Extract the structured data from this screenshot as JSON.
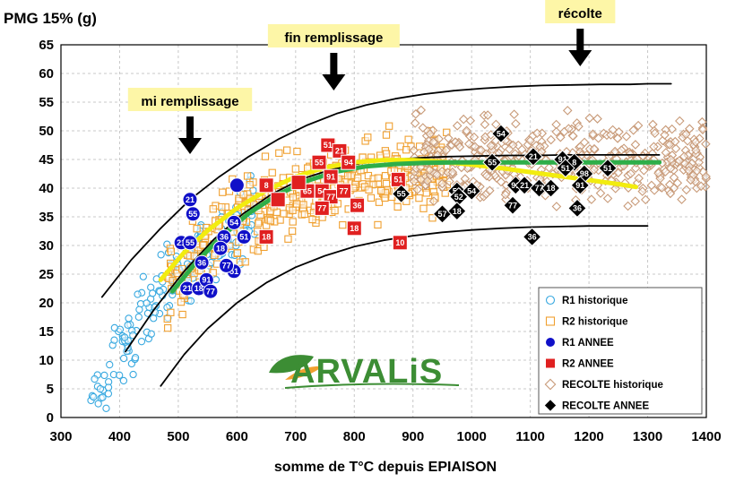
{
  "chart_data": {
    "type": "scatter",
    "title": "PMG 15% (g)",
    "xlabel": "somme de T°C depuis EPIAISON",
    "ylabel": "PMG 15% (g)",
    "xlim": [
      300,
      1400
    ],
    "ylim": [
      0,
      65
    ],
    "x_ticks": [
      "300",
      "400",
      "500",
      "600",
      "700",
      "800",
      "900",
      "1000",
      "1100",
      "1200",
      "1300",
      "1400"
    ],
    "y_ticks": [
      "0",
      "5",
      "10",
      "15",
      "20",
      "25",
      "30",
      "35",
      "40",
      "45",
      "50",
      "55",
      "60",
      "65"
    ],
    "grid": "dashed horizontal and vertical",
    "legend_position": "bottom-right",
    "annotations": [
      {
        "label": "mi remplissage",
        "x": 520
      },
      {
        "label": "fin remplissage",
        "x": 765
      },
      {
        "label": "récolte",
        "x": 1185
      }
    ],
    "series": [
      {
        "name": "R1 historique",
        "marker": "circle-open",
        "color": "#39a9e0",
        "cloud": {
          "x_range": [
            350,
            630
          ],
          "curve": "growth",
          "spread": 4.5,
          "count": 200
        }
      },
      {
        "name": "R2 historique",
        "marker": "square-open",
        "color": "#f0a030",
        "cloud": {
          "x_range": [
            480,
            960
          ],
          "curve": "growth",
          "spread": 5,
          "count": 440
        }
      },
      {
        "name": "R1 ANNEE",
        "marker": "circle-filled",
        "color": "#1010c8",
        "points": [
          {
            "x": 520,
            "y": 38,
            "label": "21"
          },
          {
            "x": 525,
            "y": 35.5,
            "label": "55"
          },
          {
            "x": 505,
            "y": 30.5,
            "label": "21"
          },
          {
            "x": 520,
            "y": 30.5,
            "label": "55"
          },
          {
            "x": 595,
            "y": 34,
            "label": "54"
          },
          {
            "x": 578,
            "y": 31.5,
            "label": "36"
          },
          {
            "x": 612,
            "y": 31.5,
            "label": "51"
          },
          {
            "x": 572,
            "y": 29.5,
            "label": "18"
          },
          {
            "x": 595,
            "y": 25.5,
            "label": "51"
          },
          {
            "x": 582,
            "y": 26.5,
            "label": "77"
          },
          {
            "x": 515,
            "y": 22.5,
            "label": "21"
          },
          {
            "x": 535,
            "y": 22.5,
            "label": "18"
          },
          {
            "x": 548,
            "y": 24,
            "label": "91"
          },
          {
            "x": 555,
            "y": 22,
            "label": "77"
          },
          {
            "x": 540,
            "y": 27,
            "label": "36"
          },
          {
            "x": 600,
            "y": 40.5,
            "label": ""
          }
        ]
      },
      {
        "name": "R2 ANNEE",
        "marker": "square-filled",
        "color": "#e02020",
        "points": [
          {
            "x": 650,
            "y": 40.5,
            "label": "8"
          },
          {
            "x": 755,
            "y": 47.5,
            "label": "51"
          },
          {
            "x": 740,
            "y": 44.5,
            "label": "55"
          },
          {
            "x": 775,
            "y": 46.5,
            "label": "21"
          },
          {
            "x": 790,
            "y": 44.5,
            "label": "94"
          },
          {
            "x": 760,
            "y": 42,
            "label": "91"
          },
          {
            "x": 720,
            "y": 39.5,
            "label": "65"
          },
          {
            "x": 745,
            "y": 39.5,
            "label": "54"
          },
          {
            "x": 760,
            "y": 38.5,
            "label": "77"
          },
          {
            "x": 782,
            "y": 39.5,
            "label": "77"
          },
          {
            "x": 745,
            "y": 36.5,
            "label": "77"
          },
          {
            "x": 805,
            "y": 37,
            "label": "36"
          },
          {
            "x": 800,
            "y": 33,
            "label": "18"
          },
          {
            "x": 650,
            "y": 31.5,
            "label": "18"
          },
          {
            "x": 875,
            "y": 41.5,
            "label": "51"
          },
          {
            "x": 878,
            "y": 30.5,
            "label": "10"
          },
          {
            "x": 670,
            "y": 38,
            "label": ""
          },
          {
            "x": 705,
            "y": 41,
            "label": ""
          }
        ]
      },
      {
        "name": "RECOLTE historique",
        "marker": "diamond-open",
        "color": "#c89a78",
        "cloud": {
          "x_range": [
            900,
            1400
          ],
          "curve": "plateau",
          "spread": 5,
          "count": 440
        }
      },
      {
        "name": "RECOLTE ANNEE",
        "marker": "diamond-filled",
        "color": "#000000",
        "points": [
          {
            "x": 1050,
            "y": 49.5,
            "label": "54"
          },
          {
            "x": 1035,
            "y": 44.5,
            "label": "55"
          },
          {
            "x": 1105,
            "y": 45.5,
            "label": "21"
          },
          {
            "x": 1155,
            "y": 45,
            "label": "91"
          },
          {
            "x": 1175,
            "y": 44.5,
            "label": "8"
          },
          {
            "x": 1160,
            "y": 43.5,
            "label": "51"
          },
          {
            "x": 1192,
            "y": 42.5,
            "label": "98"
          },
          {
            "x": 1232,
            "y": 43.5,
            "label": "51"
          },
          {
            "x": 1185,
            "y": 40.5,
            "label": "91"
          },
          {
            "x": 975,
            "y": 39.5,
            "label": "52"
          },
          {
            "x": 978,
            "y": 38.5,
            "label": "52"
          },
          {
            "x": 1000,
            "y": 39.5,
            "label": "54"
          },
          {
            "x": 1075,
            "y": 40.5,
            "label": "91"
          },
          {
            "x": 1090,
            "y": 40.5,
            "label": "21"
          },
          {
            "x": 1115,
            "y": 40,
            "label": "77"
          },
          {
            "x": 1135,
            "y": 40,
            "label": "18"
          },
          {
            "x": 880,
            "y": 39,
            "label": "55"
          },
          {
            "x": 950,
            "y": 35.5,
            "label": "57"
          },
          {
            "x": 975,
            "y": 36,
            "label": "18"
          },
          {
            "x": 1070,
            "y": 37,
            "label": "77"
          },
          {
            "x": 1180,
            "y": 36.5,
            "label": "36"
          },
          {
            "x": 1103,
            "y": 31.5,
            "label": "36"
          }
        ]
      }
    ],
    "curves": [
      {
        "name": "envelope-upper",
        "color": "#000000",
        "x": [
          370,
          420,
          470,
          520,
          570,
          620,
          670,
          720,
          770,
          820,
          870,
          920,
          970,
          1020,
          1070,
          1120,
          1170,
          1220,
          1270,
          1300,
          1340
        ],
        "y": [
          21,
          27.5,
          33,
          38,
          42,
          45.5,
          48.5,
          51,
          53,
          54.5,
          55.6,
          56.4,
          57,
          57.4,
          57.7,
          57.9,
          58,
          58.1,
          58.1,
          58.2,
          58.2
        ]
      },
      {
        "name": "envelope-middle",
        "color": "#000000",
        "x": [
          410,
          460,
          510,
          560,
          610,
          660,
          710,
          760,
          810,
          860,
          910,
          960,
          1010,
          1060,
          1110,
          1160,
          1210,
          1260,
          1300,
          1320
        ],
        "y": [
          11.5,
          19,
          25.5,
          31,
          35.5,
          39,
          41.6,
          43.2,
          44.3,
          44.9,
          45.3,
          45.5,
          45.6,
          45.7,
          45.7,
          45.8,
          45.8,
          45.8,
          45.8,
          45.8
        ]
      },
      {
        "name": "envelope-lower",
        "color": "#000000",
        "x": [
          470,
          510,
          550,
          600,
          650,
          700,
          750,
          800,
          850,
          900,
          950,
          1000,
          1050,
          1100,
          1150,
          1200,
          1250,
          1300
        ],
        "y": [
          5.5,
          11,
          15.5,
          20,
          23.5,
          26.2,
          28.2,
          29.8,
          30.9,
          31.7,
          32.3,
          32.7,
          33,
          33.2,
          33.3,
          33.4,
          33.4,
          33.4
        ]
      },
      {
        "name": "fit-current-year",
        "color": "#f2ec0f",
        "x": [
          470,
          510,
          550,
          600,
          650,
          700,
          750,
          800,
          850,
          900,
          950,
          1000,
          1050,
          1100,
          1150,
          1200,
          1250,
          1280
        ],
        "y": [
          24,
          28.8,
          32.6,
          36.5,
          39.6,
          42,
          43.6,
          44.5,
          44.9,
          44.9,
          44.6,
          44.1,
          43.5,
          42.8,
          42.1,
          41.4,
          40.7,
          40.2
        ]
      },
      {
        "name": "fit-historical",
        "color": "#2eae49",
        "x": [
          490,
          530,
          570,
          620,
          670,
          720,
          770,
          820,
          870,
          920,
          970,
          1020,
          1070,
          1120,
          1170,
          1220,
          1270,
          1320
        ],
        "y": [
          22,
          27,
          31.2,
          35.6,
          38.9,
          41.3,
          42.9,
          43.8,
          44.2,
          44.4,
          44.5,
          44.5,
          44.5,
          44.5,
          44.5,
          44.5,
          44.5,
          44.5
        ]
      }
    ]
  },
  "logo": {
    "text": "ARVALiS"
  }
}
